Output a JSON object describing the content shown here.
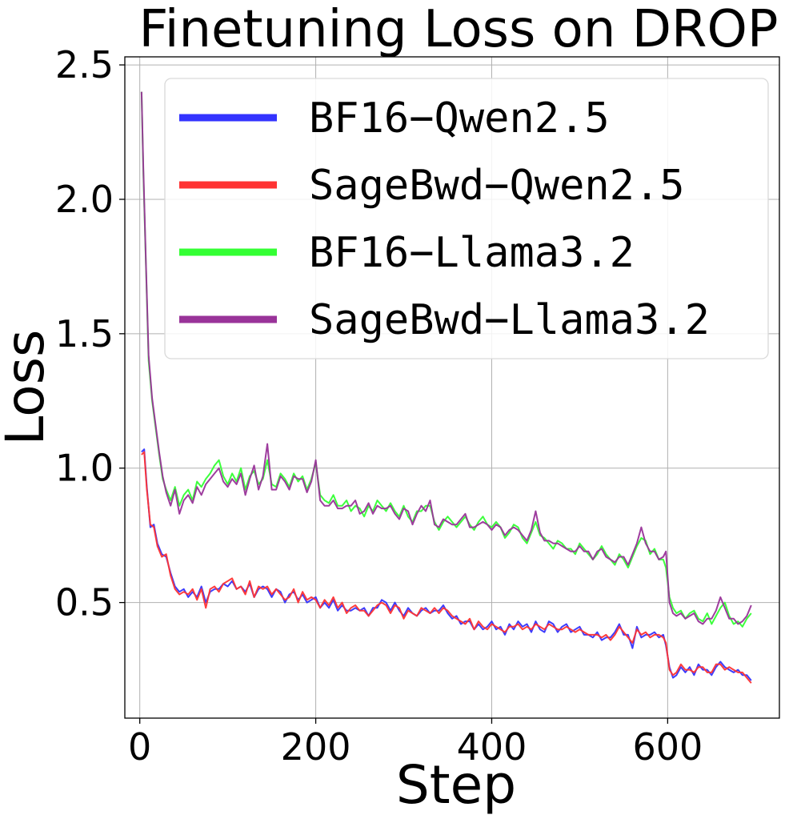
{
  "chart_data": {
    "type": "line",
    "title": "Finetuning Loss on DROP",
    "xlabel": "Step",
    "ylabel": "Loss",
    "xlim": [
      -17,
      727
    ],
    "ylim": [
      0.07,
      2.53
    ],
    "xticks": [
      0,
      200,
      400,
      600
    ],
    "xtick_labels": [
      "0",
      "200",
      "400",
      "600"
    ],
    "yticks": [
      0.5,
      1.0,
      1.5,
      2.0,
      2.5
    ],
    "ytick_labels": [
      "0.5",
      "1.0",
      "1.5",
      "2.0",
      "2.5"
    ],
    "grid": true,
    "legend_position": "top-right",
    "series": [
      {
        "name": "BF16−Qwen2.5",
        "color": "#3333ff",
        "x": [
          2,
          5,
          8,
          12,
          16,
          20,
          25,
          30,
          35,
          40,
          45,
          50,
          55,
          60,
          65,
          70,
          75,
          80,
          85,
          90,
          95,
          100,
          105,
          110,
          115,
          120,
          125,
          130,
          135,
          140,
          145,
          150,
          155,
          160,
          165,
          170,
          175,
          180,
          185,
          190,
          195,
          200,
          205,
          210,
          215,
          220,
          225,
          230,
          235,
          240,
          245,
          250,
          255,
          260,
          265,
          270,
          275,
          280,
          285,
          290,
          295,
          300,
          305,
          310,
          315,
          320,
          325,
          330,
          335,
          340,
          345,
          350,
          355,
          360,
          365,
          370,
          375,
          380,
          385,
          390,
          395,
          400,
          405,
          410,
          415,
          420,
          425,
          430,
          435,
          440,
          445,
          450,
          455,
          460,
          465,
          470,
          475,
          480,
          485,
          490,
          495,
          500,
          505,
          510,
          515,
          520,
          525,
          530,
          535,
          540,
          545,
          550,
          555,
          560,
          565,
          570,
          575,
          580,
          585,
          590,
          595,
          598,
          602,
          606,
          610,
          615,
          620,
          625,
          630,
          635,
          640,
          645,
          650,
          655,
          660,
          665,
          670,
          675,
          680,
          685,
          690,
          695
        ],
        "y": [
          1.06,
          1.07,
          0.93,
          0.78,
          0.79,
          0.72,
          0.68,
          0.67,
          0.61,
          0.56,
          0.54,
          0.55,
          0.52,
          0.54,
          0.52,
          0.56,
          0.5,
          0.54,
          0.55,
          0.55,
          0.57,
          0.56,
          0.58,
          0.55,
          0.56,
          0.54,
          0.57,
          0.52,
          0.55,
          0.56,
          0.55,
          0.52,
          0.55,
          0.54,
          0.5,
          0.53,
          0.54,
          0.51,
          0.53,
          0.5,
          0.51,
          0.52,
          0.48,
          0.5,
          0.48,
          0.51,
          0.47,
          0.49,
          0.47,
          0.47,
          0.48,
          0.47,
          0.48,
          0.45,
          0.48,
          0.48,
          0.51,
          0.5,
          0.47,
          0.5,
          0.47,
          0.45,
          0.48,
          0.46,
          0.45,
          0.47,
          0.48,
          0.46,
          0.47,
          0.47,
          0.49,
          0.46,
          0.44,
          0.45,
          0.42,
          0.43,
          0.43,
          0.4,
          0.42,
          0.4,
          0.41,
          0.43,
          0.4,
          0.41,
          0.38,
          0.42,
          0.4,
          0.43,
          0.41,
          0.42,
          0.39,
          0.43,
          0.4,
          0.39,
          0.43,
          0.42,
          0.39,
          0.41,
          0.42,
          0.39,
          0.4,
          0.41,
          0.38,
          0.38,
          0.37,
          0.39,
          0.36,
          0.37,
          0.37,
          0.39,
          0.42,
          0.38,
          0.38,
          0.33,
          0.41,
          0.37,
          0.38,
          0.38,
          0.39,
          0.37,
          0.38,
          0.34,
          0.26,
          0.22,
          0.23,
          0.26,
          0.24,
          0.26,
          0.23,
          0.27,
          0.25,
          0.25,
          0.23,
          0.26,
          0.28,
          0.26,
          0.25,
          0.24,
          0.25,
          0.23,
          0.23,
          0.21
        ]
      },
      {
        "name": "SageBwd−Qwen2.5",
        "color": "#ff3333",
        "x": [
          2,
          5,
          8,
          12,
          16,
          20,
          25,
          30,
          35,
          40,
          45,
          50,
          55,
          60,
          65,
          70,
          75,
          80,
          85,
          90,
          95,
          100,
          105,
          110,
          115,
          120,
          125,
          130,
          135,
          140,
          145,
          150,
          155,
          160,
          165,
          170,
          175,
          180,
          185,
          190,
          195,
          200,
          205,
          210,
          215,
          220,
          225,
          230,
          235,
          240,
          245,
          250,
          255,
          260,
          265,
          270,
          275,
          280,
          285,
          290,
          295,
          300,
          305,
          310,
          315,
          320,
          325,
          330,
          335,
          340,
          345,
          350,
          355,
          360,
          365,
          370,
          375,
          380,
          385,
          390,
          395,
          400,
          405,
          410,
          415,
          420,
          425,
          430,
          435,
          440,
          445,
          450,
          455,
          460,
          465,
          470,
          475,
          480,
          485,
          490,
          495,
          500,
          505,
          510,
          515,
          520,
          525,
          530,
          535,
          540,
          545,
          550,
          555,
          560,
          565,
          570,
          575,
          580,
          585,
          590,
          595,
          598,
          602,
          606,
          610,
          615,
          620,
          625,
          630,
          635,
          640,
          645,
          650,
          655,
          660,
          665,
          670,
          675,
          680,
          685,
          690,
          695
        ],
        "y": [
          1.05,
          1.06,
          0.92,
          0.79,
          0.78,
          0.71,
          0.67,
          0.68,
          0.6,
          0.55,
          0.53,
          0.54,
          0.53,
          0.55,
          0.51,
          0.55,
          0.48,
          0.55,
          0.56,
          0.54,
          0.57,
          0.58,
          0.59,
          0.55,
          0.56,
          0.53,
          0.58,
          0.52,
          0.56,
          0.55,
          0.56,
          0.53,
          0.55,
          0.53,
          0.51,
          0.52,
          0.55,
          0.5,
          0.54,
          0.51,
          0.52,
          0.51,
          0.48,
          0.51,
          0.49,
          0.52,
          0.48,
          0.5,
          0.46,
          0.48,
          0.49,
          0.47,
          0.47,
          0.45,
          0.47,
          0.49,
          0.5,
          0.49,
          0.46,
          0.49,
          0.48,
          0.44,
          0.47,
          0.46,
          0.45,
          0.48,
          0.47,
          0.46,
          0.48,
          0.46,
          0.48,
          0.47,
          0.45,
          0.44,
          0.43,
          0.42,
          0.44,
          0.4,
          0.43,
          0.41,
          0.4,
          0.42,
          0.41,
          0.4,
          0.39,
          0.41,
          0.41,
          0.42,
          0.4,
          0.41,
          0.4,
          0.42,
          0.41,
          0.4,
          0.42,
          0.41,
          0.4,
          0.4,
          0.41,
          0.4,
          0.39,
          0.4,
          0.39,
          0.38,
          0.38,
          0.38,
          0.37,
          0.38,
          0.36,
          0.38,
          0.41,
          0.39,
          0.37,
          0.35,
          0.4,
          0.38,
          0.39,
          0.37,
          0.38,
          0.38,
          0.37,
          0.35,
          0.25,
          0.23,
          0.24,
          0.27,
          0.25,
          0.25,
          0.24,
          0.26,
          0.26,
          0.24,
          0.24,
          0.27,
          0.27,
          0.25,
          0.26,
          0.25,
          0.24,
          0.24,
          0.22,
          0.2
        ]
      },
      {
        "name": "BF16−Llama3.2",
        "color": "#33ff33",
        "x": [
          2,
          4,
          7,
          10,
          14,
          18,
          22,
          26,
          30,
          35,
          40,
          45,
          50,
          55,
          60,
          65,
          70,
          75,
          80,
          85,
          90,
          95,
          100,
          105,
          110,
          115,
          120,
          125,
          130,
          135,
          140,
          145,
          150,
          155,
          160,
          165,
          170,
          175,
          180,
          185,
          190,
          195,
          200,
          205,
          210,
          215,
          220,
          225,
          230,
          235,
          240,
          245,
          250,
          255,
          260,
          265,
          270,
          275,
          280,
          285,
          290,
          295,
          300,
          305,
          310,
          315,
          320,
          325,
          330,
          335,
          340,
          345,
          350,
          355,
          360,
          365,
          370,
          375,
          380,
          385,
          390,
          395,
          400,
          405,
          410,
          415,
          420,
          425,
          430,
          435,
          440,
          445,
          450,
          455,
          460,
          465,
          470,
          475,
          480,
          485,
          490,
          495,
          500,
          505,
          510,
          515,
          520,
          525,
          530,
          535,
          540,
          545,
          550,
          555,
          560,
          565,
          570,
          575,
          580,
          585,
          590,
          595,
          598,
          602,
          606,
          610,
          615,
          620,
          625,
          630,
          635,
          640,
          645,
          650,
          655,
          660,
          665,
          670,
          675,
          680,
          685,
          690,
          695
        ],
        "y": [
          2.4,
          2.1,
          1.75,
          1.4,
          1.25,
          1.15,
          1.05,
          0.96,
          0.92,
          0.88,
          0.93,
          0.86,
          0.9,
          0.92,
          0.88,
          0.95,
          0.93,
          0.96,
          0.98,
          1.01,
          1.03,
          0.97,
          0.94,
          0.98,
          0.95,
          1.0,
          0.92,
          0.97,
          0.99,
          0.94,
          0.96,
          1.03,
          0.94,
          0.93,
          0.98,
          0.96,
          0.93,
          0.98,
          0.95,
          0.97,
          0.92,
          0.96,
          1.02,
          0.9,
          0.88,
          0.87,
          0.9,
          0.86,
          0.86,
          0.88,
          0.84,
          0.86,
          0.85,
          0.82,
          0.86,
          0.84,
          0.88,
          0.86,
          0.84,
          0.87,
          0.84,
          0.82,
          0.86,
          0.82,
          0.8,
          0.84,
          0.84,
          0.86,
          0.86,
          0.8,
          0.77,
          0.8,
          0.82,
          0.8,
          0.78,
          0.8,
          0.82,
          0.79,
          0.77,
          0.8,
          0.82,
          0.79,
          0.78,
          0.8,
          0.78,
          0.74,
          0.76,
          0.79,
          0.78,
          0.74,
          0.72,
          0.76,
          0.8,
          0.75,
          0.74,
          0.72,
          0.7,
          0.73,
          0.72,
          0.7,
          0.7,
          0.68,
          0.72,
          0.7,
          0.68,
          0.66,
          0.68,
          0.71,
          0.68,
          0.66,
          0.64,
          0.68,
          0.66,
          0.63,
          0.67,
          0.71,
          0.74,
          0.73,
          0.68,
          0.7,
          0.66,
          0.66,
          0.63,
          0.52,
          0.48,
          0.46,
          0.47,
          0.44,
          0.46,
          0.47,
          0.44,
          0.43,
          0.46,
          0.42,
          0.45,
          0.48,
          0.5,
          0.45,
          0.42,
          0.43,
          0.41,
          0.44,
          0.46
        ]
      },
      {
        "name": "SageBwd−Llama3.2",
        "color": "#993399",
        "x": [
          2,
          4,
          7,
          10,
          14,
          18,
          22,
          26,
          30,
          35,
          40,
          45,
          50,
          55,
          60,
          65,
          70,
          75,
          80,
          85,
          90,
          95,
          100,
          105,
          110,
          115,
          120,
          125,
          130,
          135,
          140,
          145,
          150,
          155,
          160,
          165,
          170,
          175,
          180,
          185,
          190,
          195,
          200,
          205,
          210,
          215,
          220,
          225,
          230,
          235,
          240,
          245,
          250,
          255,
          260,
          265,
          270,
          275,
          280,
          285,
          290,
          295,
          300,
          305,
          310,
          315,
          320,
          325,
          330,
          335,
          340,
          345,
          350,
          355,
          360,
          365,
          370,
          375,
          380,
          385,
          390,
          395,
          400,
          405,
          410,
          415,
          420,
          425,
          430,
          435,
          440,
          445,
          450,
          455,
          460,
          465,
          470,
          475,
          480,
          485,
          490,
          495,
          500,
          505,
          510,
          515,
          520,
          525,
          530,
          535,
          540,
          545,
          550,
          555,
          560,
          565,
          570,
          575,
          580,
          585,
          590,
          595,
          598,
          602,
          606,
          610,
          615,
          620,
          625,
          630,
          635,
          640,
          645,
          650,
          655,
          660,
          665,
          670,
          675,
          680,
          685,
          690,
          695
        ],
        "y": [
          2.4,
          2.12,
          1.76,
          1.42,
          1.26,
          1.16,
          1.06,
          0.97,
          0.91,
          0.86,
          0.92,
          0.83,
          0.88,
          0.9,
          0.87,
          0.93,
          0.9,
          0.94,
          0.96,
          0.98,
          1.0,
          0.95,
          0.93,
          0.96,
          0.94,
          0.98,
          0.9,
          0.96,
          1.01,
          0.92,
          0.97,
          1.09,
          0.92,
          0.92,
          0.97,
          0.95,
          0.92,
          0.97,
          0.96,
          0.96,
          0.91,
          0.95,
          1.03,
          0.88,
          0.86,
          0.86,
          0.88,
          0.85,
          0.85,
          0.86,
          0.86,
          0.88,
          0.83,
          0.84,
          0.87,
          0.83,
          0.86,
          0.85,
          0.85,
          0.86,
          0.83,
          0.81,
          0.85,
          0.84,
          0.79,
          0.83,
          0.86,
          0.84,
          0.88,
          0.79,
          0.78,
          0.81,
          0.8,
          0.79,
          0.79,
          0.81,
          0.83,
          0.78,
          0.78,
          0.79,
          0.8,
          0.79,
          0.77,
          0.79,
          0.78,
          0.75,
          0.77,
          0.78,
          0.77,
          0.75,
          0.73,
          0.77,
          0.84,
          0.76,
          0.73,
          0.73,
          0.72,
          0.72,
          0.71,
          0.7,
          0.69,
          0.69,
          0.71,
          0.69,
          0.69,
          0.66,
          0.69,
          0.7,
          0.67,
          0.66,
          0.65,
          0.67,
          0.67,
          0.64,
          0.68,
          0.72,
          0.78,
          0.72,
          0.69,
          0.69,
          0.66,
          0.67,
          0.69,
          0.5,
          0.46,
          0.45,
          0.46,
          0.44,
          0.45,
          0.46,
          0.43,
          0.42,
          0.44,
          0.44,
          0.47,
          0.52,
          0.48,
          0.44,
          0.44,
          0.42,
          0.43,
          0.45,
          0.49
        ]
      }
    ]
  }
}
